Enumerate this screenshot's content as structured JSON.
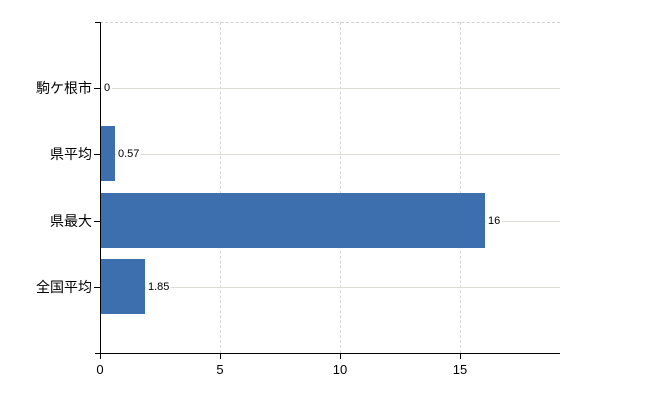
{
  "chart_data": {
    "type": "bar",
    "orientation": "horizontal",
    "title": "",
    "xlabel": "",
    "ylabel": "",
    "categories": [
      "駒ケ根市",
      "県平均",
      "県最大",
      "全国平均"
    ],
    "values": [
      0,
      0.57,
      16,
      1.85
    ],
    "value_labels": [
      "0",
      "0.57",
      "16",
      "1.85"
    ],
    "xticks": [
      0,
      5,
      10,
      15
    ],
    "xtick_labels": [
      "0",
      "5",
      "10",
      "15"
    ],
    "xlim": [
      0,
      19.15
    ],
    "grid": true,
    "legend": null,
    "colors": {
      "bar": "#3d6fae",
      "axis": "#000000",
      "vertical_gridline": "#d6d6d6",
      "row_guide_line": "#d9dfd4",
      "plot_top_border": "#cfcfcf",
      "text": "#000000",
      "background": "#ffffff"
    }
  }
}
